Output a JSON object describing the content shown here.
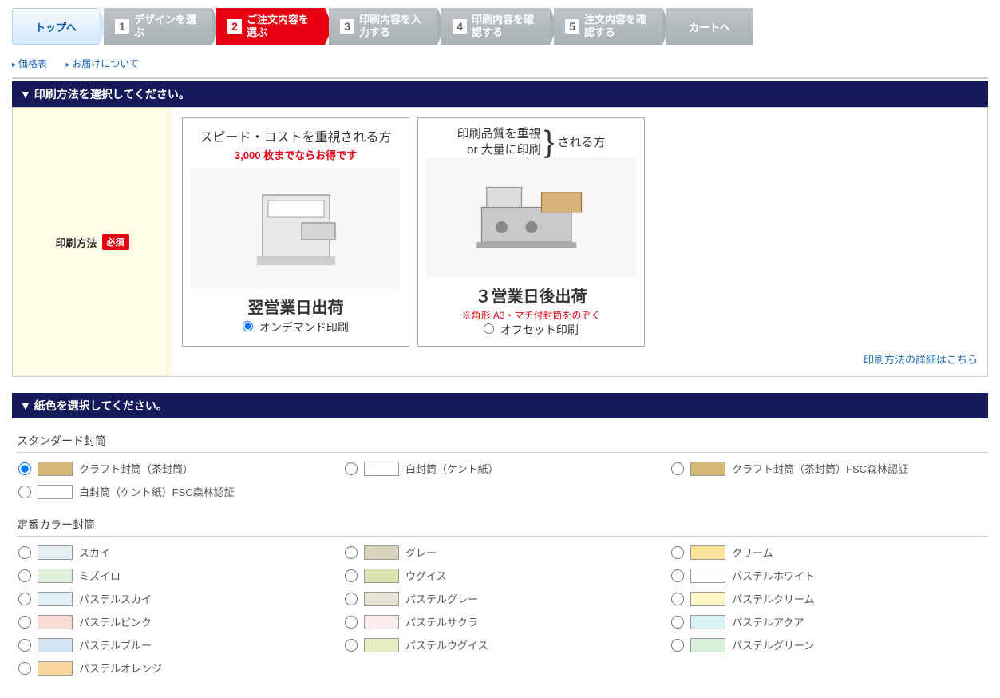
{
  "steps": {
    "top": "トップへ",
    "s1": {
      "num": "1",
      "label": "デザインを選ぶ"
    },
    "s2": {
      "num": "2",
      "label": "ご注文内容を選ぶ"
    },
    "s3": {
      "num": "3",
      "label": "印刷内容を入力する"
    },
    "s4": {
      "num": "4",
      "label": "印刷内容を確認する"
    },
    "s5": {
      "num": "5",
      "label": "注文内容を確認する"
    },
    "cart": "カートへ"
  },
  "sublinks": {
    "price": "価格表",
    "delivery": "お届けについて"
  },
  "section1": {
    "title": "印刷方法を選択してください。"
  },
  "pm": {
    "label": "印刷方法",
    "badge": "必須",
    "card1": {
      "title": "スピード・コストを重視される方",
      "sub": "3,000 枚までならお得です",
      "ship": "翌営業日出荷",
      "radio": "オンデマンド印刷"
    },
    "card2": {
      "titleL1": "印刷品質を重視",
      "titleL2": "or 大量に印刷",
      "titleR": "される方",
      "ship": "３営業日後出荷",
      "shipSub": "※角形 A3・マチ付封筒をのぞく",
      "radio": "オフセット印刷"
    },
    "detail": "印刷方法の詳細はこちら"
  },
  "section2": {
    "title": "紙色を選択してください。"
  },
  "group1": {
    "title": "スタンダード封筒"
  },
  "group2": {
    "title": "定番カラー封筒"
  },
  "std": [
    {
      "label": "クラフト封筒（茶封筒）",
      "color": "#d6b776",
      "checked": true
    },
    {
      "label": "白封筒（ケント紙）",
      "color": "#ffffff",
      "checked": false
    },
    {
      "label": "クラフト封筒（茶封筒）FSC森林認証",
      "color": "#d6b776",
      "checked": false
    },
    {
      "label": "白封筒（ケント紙）FSC森林認証",
      "color": "#ffffff",
      "checked": false
    }
  ],
  "clr": [
    {
      "label": "スカイ",
      "color": "#e6eef2"
    },
    {
      "label": "グレー",
      "color": "#d9d3bc"
    },
    {
      "label": "クリーム",
      "color": "#fae299"
    },
    {
      "label": "ミズイロ",
      "color": "#dff0da"
    },
    {
      "label": "ウグイス",
      "color": "#d9e3b0"
    },
    {
      "label": "パステルホワイト",
      "color": "#ffffff"
    },
    {
      "label": "パステルスカイ",
      "color": "#e4f1f6"
    },
    {
      "label": "パステルグレー",
      "color": "#e5e4d5"
    },
    {
      "label": "パステルクリーム",
      "color": "#fcf6c8"
    },
    {
      "label": "パステルピンク",
      "color": "#f7dcd4"
    },
    {
      "label": "パステルサクラ",
      "color": "#fdecee"
    },
    {
      "label": "パステルアクア",
      "color": "#d8f1f3"
    },
    {
      "label": "パステルブルー",
      "color": "#d2e3f3"
    },
    {
      "label": "パステルウグイス",
      "color": "#e6edc5"
    },
    {
      "label": "パステルグリーン",
      "color": "#d7efd6"
    },
    {
      "label": "パステルオレンジ",
      "color": "#fbd79b"
    }
  ]
}
